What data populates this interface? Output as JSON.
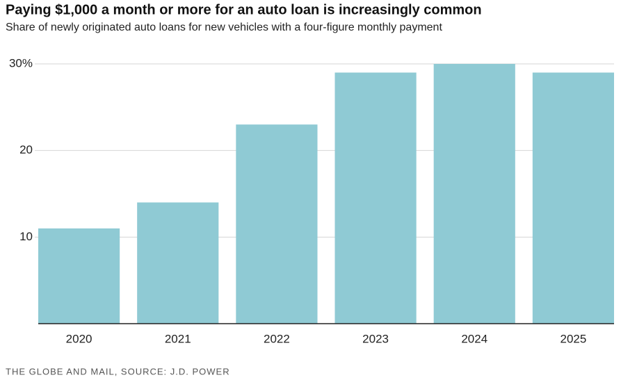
{
  "chart_data": {
    "type": "bar",
    "title": "Paying $1,000 a month or more for an auto loan is increasingly common",
    "subtitle": "Share of newly originated auto loans for new vehicles with a four-figure monthly payment",
    "source": "THE GLOBE AND MAIL, SOURCE: J.D. POWER",
    "categories": [
      "2020",
      "2021",
      "2022",
      "2023",
      "2024",
      "2025"
    ],
    "values": [
      11,
      14,
      23,
      29,
      30,
      29
    ],
    "color": "#8fcad4",
    "ylim": [
      0,
      30
    ],
    "yticks": [
      10,
      20,
      {
        "value": 30,
        "label": "30%"
      }
    ],
    "grid": true
  }
}
